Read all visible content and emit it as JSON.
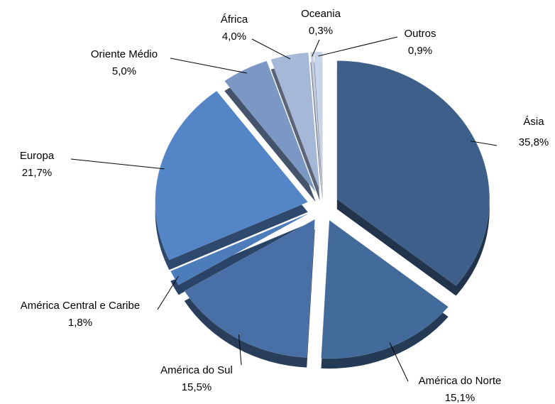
{
  "chart_data": {
    "type": "pie",
    "categories": [
      "Ásia",
      "América do Norte",
      "América do Sul",
      "América Central e Caribe",
      "Europa",
      "Oriente Médio",
      "África",
      "Oceania",
      "Outros"
    ],
    "values": [
      35.8,
      15.1,
      15.5,
      1.8,
      21.7,
      5.0,
      4.0,
      0.3,
      0.9
    ],
    "value_labels": [
      "35,8%",
      "15,1%",
      "15,5%",
      "1,8%",
      "21,7%",
      "5,0%",
      "4,0%",
      "0,3%",
      "0,9%"
    ],
    "colors": [
      "#3d5f8a",
      "#426a9b",
      "#4870a6",
      "#4d7cbb",
      "#5485c6",
      "#7b98c5",
      "#a6b8d8",
      "#c0cde3",
      "#c8d4e8"
    ]
  }
}
